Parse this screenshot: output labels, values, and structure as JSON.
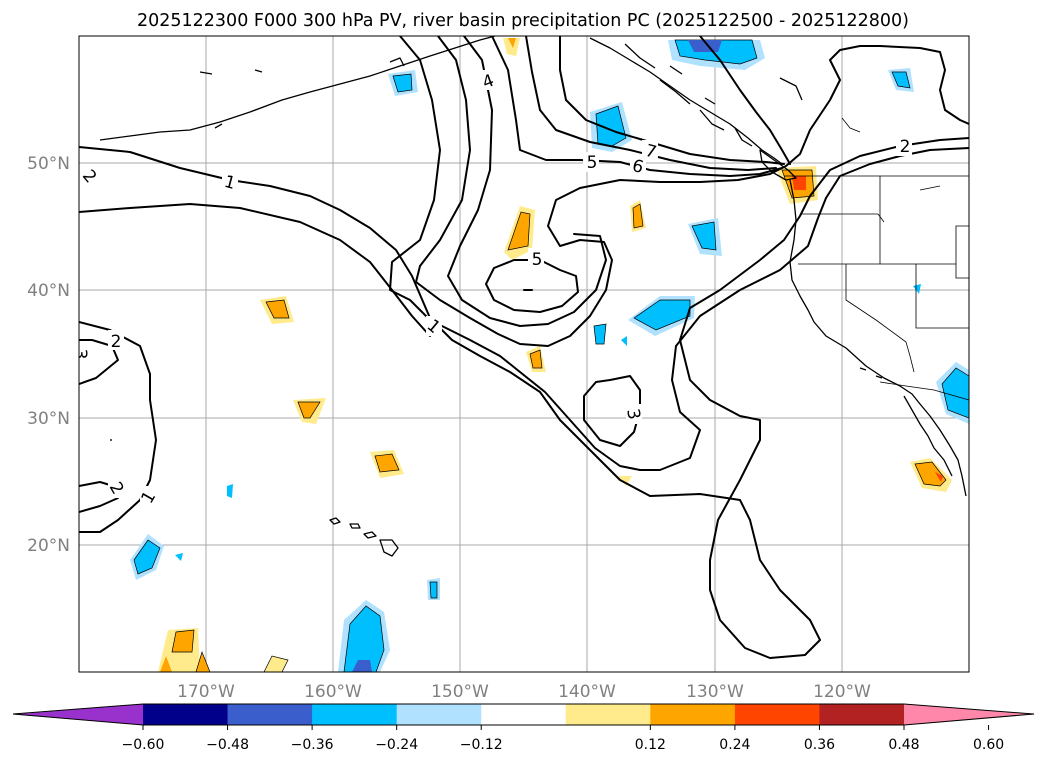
{
  "title": "2025122300 F000 300 hPa PV, river basin precipitation PC (2025122500 - 2025122800)",
  "map": {
    "lat_labels": [
      "50°N",
      "40°N",
      "30°N",
      "20°N"
    ],
    "lon_labels": [
      "170°W",
      "160°W",
      "150°W",
      "140°W",
      "130°W",
      "120°W"
    ],
    "contour_labels": [
      "1",
      "1",
      "1",
      "2",
      "2",
      "2",
      "2",
      "3",
      "3",
      "4",
      "5",
      "5",
      "6",
      "7"
    ]
  },
  "colorbar": {
    "ticks": [
      "−0.60",
      "−0.48",
      "−0.36",
      "−0.24",
      "−0.12",
      "0.12",
      "0.24",
      "0.36",
      "0.48",
      "0.60"
    ],
    "colors": [
      "#9932cc",
      "#00008b",
      "#3a5fcd",
      "#00bfff",
      "#b0e2ff",
      "#ffffff",
      "#ffeb8c",
      "#ffa500",
      "#ff4500",
      "#b22222",
      "#ff88aa"
    ]
  },
  "palette": {
    "blue_light": "#b0e2ff",
    "blue": "#00bfff",
    "blue_dark": "#3a5fcd",
    "yellow": "#ffeb8c",
    "orange": "#ffa500"
  }
}
